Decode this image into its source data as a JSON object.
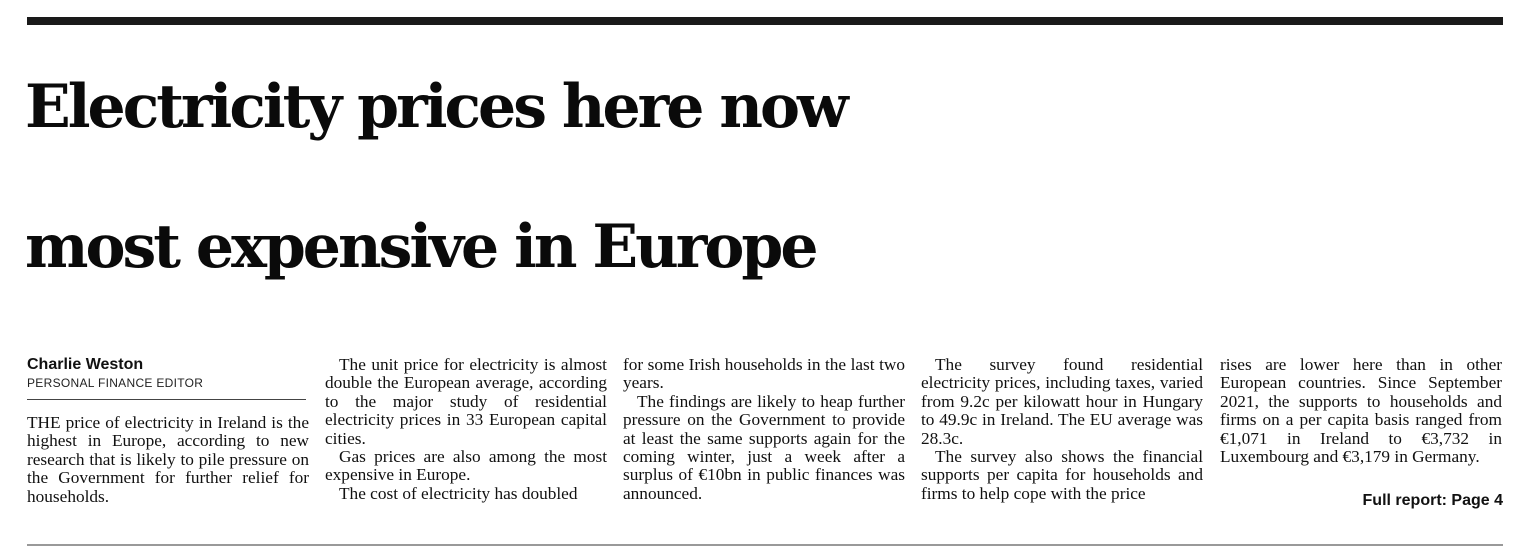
{
  "headline": {
    "line1": "Electricity prices here now",
    "line2": "most expensive in Europe"
  },
  "byline": {
    "name": "Charlie Weston",
    "role": "PERSONAL FINANCE EDITOR"
  },
  "columns": {
    "col1": [
      "THE price of electricity in Ireland is the highest in Europe, according to new research that is likely to pile pressure on the Government for further relief for households."
    ],
    "col2": [
      "The unit price for electricity is almost double the European average, according to the major study of residential electricity prices in 33 European capital cities.",
      "Gas prices are also among the most expensive in Europe.",
      "The cost of electricity has doubled"
    ],
    "col3": [
      "for some Irish households in the last two years.",
      "The findings are likely to heap further pressure on the Government to provide at least the same supports again for the coming winter, just a week after a surplus of €10bn in public finances was announced."
    ],
    "col4": [
      "The survey found residential electricity prices, including taxes, varied from 9.2c per kilowatt hour in Hungary to 49.9c in Ireland. The EU average was 28.3c.",
      "The survey also shows the financial supports per capita for households and firms to help cope with the price"
    ],
    "col5": [
      "rises are lower here than in other European countries. Since September 2021, the supports to households and firms on a per capita basis ranged from €1,071 in Ireland to €3,732 in Luxembourg and €3,179 in Germany."
    ]
  },
  "full_report": "Full report: Page 4"
}
